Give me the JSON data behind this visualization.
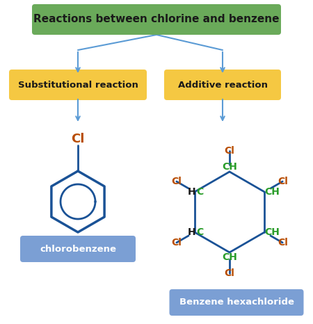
{
  "title": "Reactions between chlorine and benzene",
  "title_box_color": "#6aaa5a",
  "title_text_color": "#1a1a1a",
  "sub_box_color": "#f5c842",
  "sub_text_color": "#1a1a1a",
  "label_box_color": "#7b9fd4",
  "arrow_color": "#5b9bd5",
  "cl_color": "#b84c00",
  "ch_color_green": "#2a9d2a",
  "ch_color_black": "#1a1a1a",
  "bond_color": "#1a5296",
  "benzene_color": "#1a5296",
  "reaction1": "Substitutional reaction",
  "reaction2": "Additive reaction",
  "label1": "chlorobenzene",
  "label2": "Benzene hexachloride",
  "figw": 4.5,
  "figh": 4.66,
  "dpi": 100
}
